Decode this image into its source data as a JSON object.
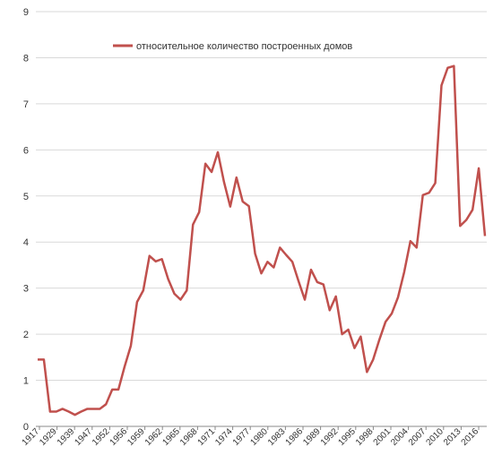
{
  "chart_data": {
    "type": "line",
    "title": "",
    "xlabel": "",
    "ylabel": "",
    "ylim": [
      0,
      9
    ],
    "y_ticks": [
      0,
      1,
      2,
      3,
      4,
      5,
      6,
      7,
      8,
      9
    ],
    "x_tick_labels": [
      "1917",
      "1929",
      "1939",
      "1947",
      "1952",
      "1956",
      "1959",
      "1962",
      "1965",
      "1968",
      "1971",
      "1974",
      "1977",
      "1980",
      "1983",
      "1986",
      "1989",
      "1992",
      "1995",
      "1998",
      "2001",
      "2004",
      "2007",
      "2010",
      "2013",
      "2016"
    ],
    "grid": "horizontal",
    "legend_position": "top",
    "series": [
      {
        "name": "относительное количество построенных домов",
        "color": "#c0504d",
        "values": [
          1.45,
          1.45,
          0.32,
          0.32,
          0.38,
          0.32,
          0.25,
          0.32,
          0.38,
          0.38,
          0.38,
          0.48,
          0.8,
          0.8,
          1.3,
          1.75,
          2.7,
          2.95,
          3.7,
          3.58,
          3.63,
          3.2,
          2.88,
          2.75,
          2.95,
          4.38,
          4.65,
          5.7,
          5.52,
          5.95,
          5.3,
          4.77,
          5.4,
          4.88,
          4.78,
          3.75,
          3.32,
          3.57,
          3.45,
          3.88,
          3.72,
          3.57,
          3.15,
          2.75,
          3.4,
          3.13,
          3.08,
          2.52,
          2.82,
          2.0,
          2.1,
          1.7,
          1.95,
          1.18,
          1.45,
          1.88,
          2.27,
          2.45,
          2.8,
          3.35,
          4.02,
          3.88,
          5.02,
          5.07,
          5.28,
          7.4,
          7.78,
          7.82,
          4.35,
          4.48,
          4.7,
          5.6,
          4.13
        ]
      }
    ]
  }
}
